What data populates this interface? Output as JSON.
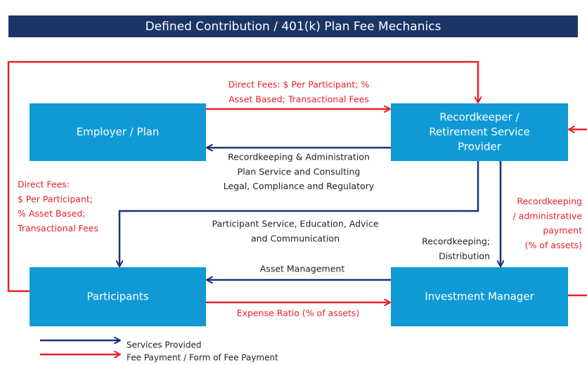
{
  "title": "Defined Contribution / 401(k) Plan Fee Mechanics",
  "nodes": [
    {
      "label": [
        "Employer / Plan"
      ]
    },
    {
      "label": [
        "Recordkeeper /",
        "Retirement Service",
        "Provider"
      ]
    },
    {
      "label": [
        "Participants"
      ]
    },
    {
      "label": [
        "Investment Manager"
      ]
    }
  ],
  "edges": [
    {
      "label": [
        "Direct Fees: $ Per Participant; %",
        "Asset Based; Transactional Fees"
      ]
    },
    {
      "label": [
        "Recordkeeping & Administration",
        "Plan Service and Consulting",
        "Legal, Compliance and Regulatory"
      ]
    },
    {
      "label": [
        "Direct Fees:",
        "$ Per Participant;",
        "% Asset Based;",
        "Transactional Fees"
      ]
    },
    {
      "label": [
        "Participant Service, Education, Advice",
        "and Communication"
      ]
    },
    {
      "label": [
        "Recordkeeping;",
        "Distribution"
      ]
    },
    {
      "label": [
        "Recordkeeping",
        "/ administrative",
        "payment",
        "(% of assets)"
      ]
    },
    {
      "label": [
        "Asset Management"
      ]
    },
    {
      "label": [
        "Expense Ratio (% of assets)"
      ]
    }
  ],
  "legend": [
    {
      "label": "Services Provided"
    },
    {
      "label": "Fee Payment / Form of Fee Payment"
    }
  ]
}
